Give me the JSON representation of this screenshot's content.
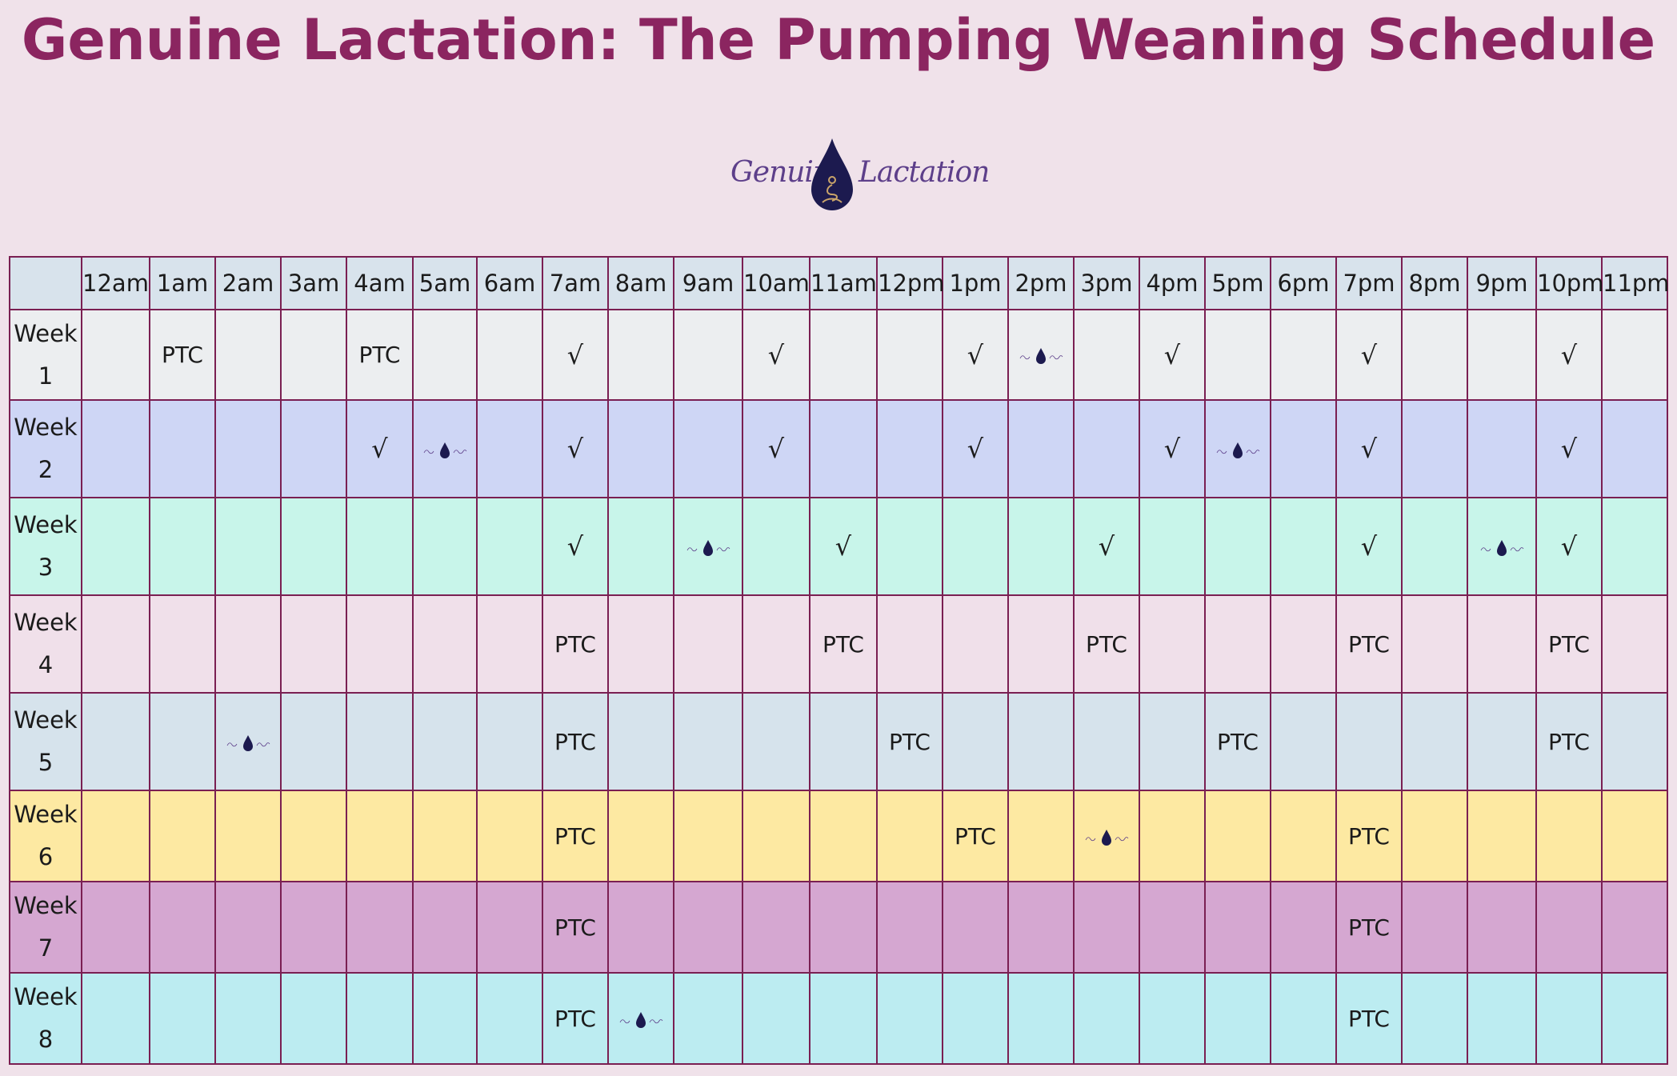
{
  "title": "Genuine Lactation: The Pumping Weaning Schedule",
  "brand": {
    "left_text": "Genuine",
    "right_text": "Lactation",
    "drop_color": "#1c1a4f",
    "symbol_color": "#c9a46a",
    "script_color": "#5d3f8a"
  },
  "columns": [
    "12am",
    "1am",
    "2am",
    "3am",
    "4am",
    "5am",
    "6am",
    "7am",
    "8am",
    "9am",
    "10am",
    "11am",
    "12pm",
    "1pm",
    "2pm",
    "3pm",
    "4pm",
    "5pm",
    "6pm",
    "7pm",
    "8pm",
    "9pm",
    "10pm",
    "11pm"
  ],
  "rows": [
    {
      "label": "Week 1",
      "color": "#eceef0",
      "height": 113,
      "cells": [
        "",
        "PTC",
        "",
        "",
        "PTC",
        "",
        "",
        "√",
        "",
        "",
        "√",
        "",
        "",
        "√",
        "LOGO",
        "",
        "√",
        "",
        "",
        "√",
        "",
        "",
        "√",
        ""
      ]
    },
    {
      "label": "Week 2",
      "color": "#ced6f5",
      "height": 122,
      "cells": [
        "",
        "",
        "",
        "",
        "√",
        "LOGO",
        "",
        "√",
        "",
        "",
        "√",
        "",
        "",
        "√",
        "",
        "",
        "√",
        "LOGO",
        "",
        "√",
        "",
        "",
        "√",
        ""
      ]
    },
    {
      "label": "Week 3",
      "color": "#c8f5ea",
      "height": 122,
      "cells": [
        "",
        "",
        "",
        "",
        "",
        "",
        "",
        "√",
        "",
        "LOGO",
        "",
        "√",
        "",
        "",
        "",
        "√",
        "",
        "",
        "",
        "√",
        "",
        "LOGO",
        "√",
        ""
      ]
    },
    {
      "label": "Week 4",
      "color": "#f0e0ea",
      "height": 122,
      "cells": [
        "",
        "",
        "",
        "",
        "",
        "",
        "",
        "PTC",
        "",
        "",
        "",
        "PTC",
        "",
        "",
        "",
        "PTC",
        "",
        "",
        "",
        "PTC",
        "",
        "",
        "PTC",
        ""
      ]
    },
    {
      "label": "Week 5",
      "color": "#d6e3ec",
      "height": 122,
      "cells": [
        "",
        "",
        "LOGO",
        "",
        "",
        "",
        "",
        "PTC",
        "",
        "",
        "",
        "",
        "PTC",
        "",
        "",
        "",
        "",
        "PTC",
        "",
        "",
        "",
        "",
        "PTC",
        ""
      ]
    },
    {
      "label": "Week 6",
      "color": "#fde9a2",
      "height": 114,
      "cells": [
        "",
        "",
        "",
        "",
        "",
        "",
        "",
        "PTC",
        "",
        "",
        "",
        "",
        "",
        "PTC",
        "",
        "LOGO",
        "",
        "",
        "",
        "PTC",
        "",
        "",
        "",
        ""
      ]
    },
    {
      "label": "Week 7",
      "color": "#d5a7d1",
      "height": 114,
      "cells": [
        "",
        "",
        "",
        "",
        "",
        "",
        "",
        "PTC",
        "",
        "",
        "",
        "",
        "",
        "",
        "",
        "",
        "",
        "",
        "",
        "PTC",
        "",
        "",
        "",
        ""
      ]
    },
    {
      "label": "Week 8",
      "color": "#bcecf1",
      "height": 114,
      "cells": [
        "",
        "",
        "",
        "",
        "",
        "",
        "",
        "PTC",
        "LOGO",
        "",
        "",
        "",
        "",
        "",
        "",
        "",
        "",
        "",
        "",
        "PTC",
        "",
        "",
        "",
        ""
      ]
    }
  ]
}
